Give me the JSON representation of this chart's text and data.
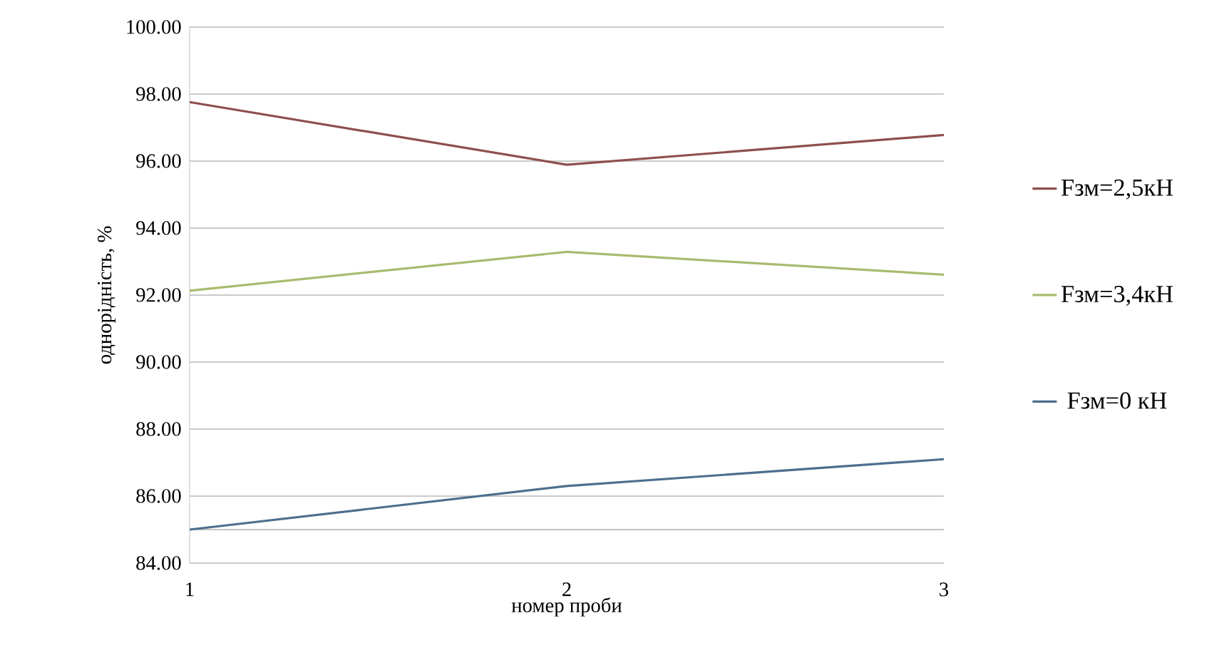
{
  "chart_data": {
    "type": "line",
    "xlabel": "номер проби",
    "ylabel": "однорідність, %",
    "categories": [
      "1",
      "2",
      "3"
    ],
    "series": [
      {
        "name": "Fзм=2,5кН",
        "color": "#8e4f4f",
        "values": [
          97.76,
          95.89,
          96.78
        ]
      },
      {
        "name": "Fзм=3,4кН",
        "color": "#a8bb70",
        "values": [
          92.13,
          93.29,
          92.61
        ]
      },
      {
        "name": "Fзм=0 кН",
        "color": "#4d6f8e",
        "values": [
          85.0,
          86.3,
          87.1
        ]
      }
    ],
    "ylim": [
      84,
      100
    ],
    "yticks": [
      {
        "value": 84,
        "label": "84.00"
      },
      {
        "value": 86,
        "label": "86.00"
      },
      {
        "value": 88,
        "label": "88.00"
      },
      {
        "value": 90,
        "label": "90.00"
      },
      {
        "value": 92,
        "label": "92.00"
      },
      {
        "value": 94,
        "label": "94.00"
      },
      {
        "value": 96,
        "label": "96.00"
      },
      {
        "value": 98,
        "label": "98.00"
      },
      {
        "value": 100,
        "label": "100.00"
      }
    ],
    "ref_lines": [
      {
        "axis": "y",
        "value": 85,
        "color": "#b0b0b0"
      }
    ],
    "grid": "y",
    "legend": "right",
    "marker": "none",
    "line_style": "solid"
  }
}
